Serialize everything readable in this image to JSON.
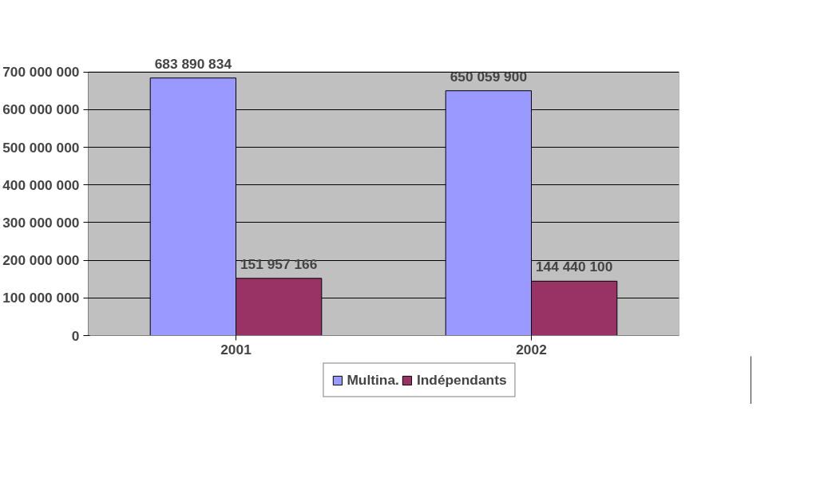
{
  "chart_data": {
    "type": "bar",
    "categories": [
      "2001",
      "2002"
    ],
    "series": [
      {
        "name": "Multina.",
        "color": "#9999ff",
        "values": [
          683890834,
          650059900
        ],
        "value_labels": [
          "683 890 834",
          "650 059 900"
        ]
      },
      {
        "name": "Indépendants",
        "color": "#993366",
        "values": [
          151957166,
          144440100
        ],
        "value_labels": [
          "151 957 166",
          "144 440 100"
        ]
      }
    ],
    "ylim": [
      0,
      700000000
    ],
    "yticks": [
      0,
      {
        "value": 100000000,
        "label": "100 000 000"
      },
      {
        "value": 200000000,
        "label": "200 000 000"
      },
      {
        "value": 300000000,
        "label": "300 000 000"
      },
      {
        "value": 400000000,
        "label": "400 000 000"
      },
      {
        "value": 500000000,
        "label": "500 000 000"
      },
      {
        "value": 600000000,
        "label": "600 000 000"
      },
      {
        "value": 700000000,
        "label": "700 000 000"
      }
    ],
    "grid": "y",
    "legend": "bottom"
  }
}
